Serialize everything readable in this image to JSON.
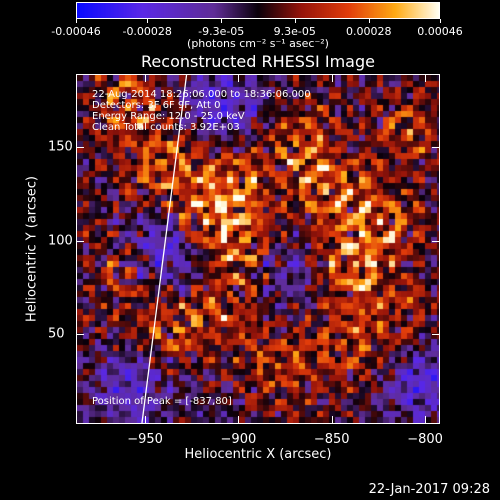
{
  "colorbar": {
    "tick_labels": [
      "-0.00046",
      "-0.00028",
      "-9.3e-05",
      "9.3e-05",
      "0.00028",
      "0.00046"
    ],
    "tick_values": [
      -0.00046,
      -0.00028,
      -9.3e-05,
      9.3e-05,
      0.00028,
      0.00046
    ],
    "range": [
      -0.00046,
      0.00046
    ],
    "units": "(photons cm⁻² s⁻¹ asec⁻²)"
  },
  "chart_data": {
    "type": "heatmap",
    "title": "Reconstructed RHESSI Image",
    "xlabel": "Heliocentric X (arcsec)",
    "ylabel": "Heliocentric Y (arcsec)",
    "xlim": [
      -987,
      -792
    ],
    "ylim": [
      2,
      189
    ],
    "x_ticks": [
      -950,
      -900,
      -850,
      -800
    ],
    "y_ticks": [
      50,
      100,
      150
    ],
    "x_tick_labels": [
      "−950",
      "−900",
      "−850",
      "−800"
    ],
    "y_tick_labels": [
      "50",
      "100",
      "150"
    ],
    "limb_line": [
      [
        -952,
        2
      ],
      [
        -928,
        189
      ]
    ],
    "bright_regions": [
      {
        "x": -942,
        "y": 142,
        "intensity": 0.9
      },
      {
        "x": -920,
        "y": 112,
        "intensity": 1.0
      },
      {
        "x": -898,
        "y": 102,
        "intensity": 0.85
      },
      {
        "x": -905,
        "y": 135,
        "intensity": 0.8
      },
      {
        "x": -840,
        "y": 88,
        "intensity": 0.95
      },
      {
        "x": -855,
        "y": 130,
        "intensity": 0.85
      },
      {
        "x": -825,
        "y": 112,
        "intensity": 0.9
      },
      {
        "x": -870,
        "y": 155,
        "intensity": 0.7
      },
      {
        "x": -960,
        "y": 85,
        "intensity": 0.75
      },
      {
        "x": -960,
        "y": 175,
        "intensity": 0.75
      },
      {
        "x": -935,
        "y": 55,
        "intensity": 0.7
      },
      {
        "x": -905,
        "y": 70,
        "intensity": 0.7
      },
      {
        "x": -845,
        "y": 45,
        "intensity": 0.65
      },
      {
        "x": -810,
        "y": 160,
        "intensity": 0.6
      },
      {
        "x": -815,
        "y": 60,
        "intensity": 0.55
      },
      {
        "x": -880,
        "y": 35,
        "intensity": 0.6
      }
    ],
    "dark_regions": [
      {
        "x": -940,
        "y": 95,
        "intensity": -0.8
      },
      {
        "x": -910,
        "y": 175,
        "intensity": -0.6
      },
      {
        "x": -800,
        "y": 25,
        "intensity": -0.6
      },
      {
        "x": -960,
        "y": 20,
        "intensity": -0.5
      },
      {
        "x": -880,
        "y": 85,
        "intensity": -0.45
      }
    ]
  },
  "annotations": {
    "time_range": "22-Aug-2014 18:26:06.000 to 18:36:06.000",
    "detectors": "Detectors: 3F 6F 9F, Att 0",
    "energy": "Energy Range: 12.0 - 25.0 keV",
    "clean": "Clean    Total counts: 3.92E+03",
    "peak": "Position of Peak = [-837,80]"
  },
  "footer": {
    "date": "22-Jan-2017 09:28"
  }
}
